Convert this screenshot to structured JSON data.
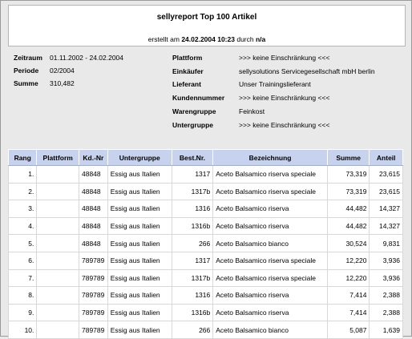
{
  "header": {
    "title": "sellyreport Top 100 Artikel",
    "created_prefix": "erstellt am",
    "created_date": "24.02.2004 10:23",
    "created_mid": "durch",
    "created_by": "n/a"
  },
  "meta_left": [
    {
      "label": "Zeitraum",
      "value": "01.11.2002 - 24.02.2004"
    },
    {
      "label": "Periode",
      "value": "02/2004"
    },
    {
      "label": "Summe",
      "value": "310,482"
    }
  ],
  "meta_right": [
    {
      "label": "Plattform",
      "value": ">>> keine Einschränkung <<<"
    },
    {
      "label": "Einkäufer",
      "value": "sellysolutions Servicegesellschaft mbH berlin"
    },
    {
      "label": "Lieferant",
      "value": "Unser Trainingslieferant"
    },
    {
      "label": "Kundennummer",
      "value": ">>> keine Einschränkung <<<"
    },
    {
      "label": "Warengruppe",
      "value": "Feinkost"
    },
    {
      "label": "Untergruppe",
      "value": ">>> keine Einschränkung <<<"
    }
  ],
  "table": {
    "headers": [
      "Rang",
      "Plattform",
      "Kd.-Nr",
      "Untergruppe",
      "Best.Nr.",
      "Bezeichnung",
      "Summe",
      "Anteil"
    ],
    "rows": [
      [
        "1.",
        "",
        "48848",
        "Essig aus Italien",
        "1317",
        "Aceto Balsamico riserva speciale",
        "73,319",
        "23,615"
      ],
      [
        "2.",
        "",
        "48848",
        "Essig aus Italien",
        "1317b",
        "Aceto Balsamico riserva speciale",
        "73,319",
        "23,615"
      ],
      [
        "3.",
        "",
        "48848",
        "Essig aus Italien",
        "1316",
        "Aceto Balsamico riserva",
        "44,482",
        "14,327"
      ],
      [
        "4.",
        "",
        "48848",
        "Essig aus Italien",
        "1316b",
        "Aceto Balsamico riserva",
        "44,482",
        "14,327"
      ],
      [
        "5.",
        "",
        "48848",
        "Essig aus Italien",
        "266",
        "Aceto Balsamico bianco",
        "30,524",
        "9,831"
      ],
      [
        "6.",
        "",
        "789789",
        "Essig aus Italien",
        "1317",
        "Aceto Balsamico riserva speciale",
        "12,220",
        "3,936"
      ],
      [
        "7.",
        "",
        "789789",
        "Essig aus Italien",
        "1317b",
        "Aceto Balsamico riserva speciale",
        "12,220",
        "3,936"
      ],
      [
        "8.",
        "",
        "789789",
        "Essig aus Italien",
        "1316",
        "Aceto Balsamico riserva",
        "7,414",
        "2,388"
      ],
      [
        "9.",
        "",
        "789789",
        "Essig aus Italien",
        "1316b",
        "Aceto Balsamico riserva",
        "7,414",
        "2,388"
      ],
      [
        "10.",
        "",
        "789789",
        "Essig aus Italien",
        "266",
        "Aceto Balsamico bianco",
        "5,087",
        "1,639"
      ]
    ]
  }
}
